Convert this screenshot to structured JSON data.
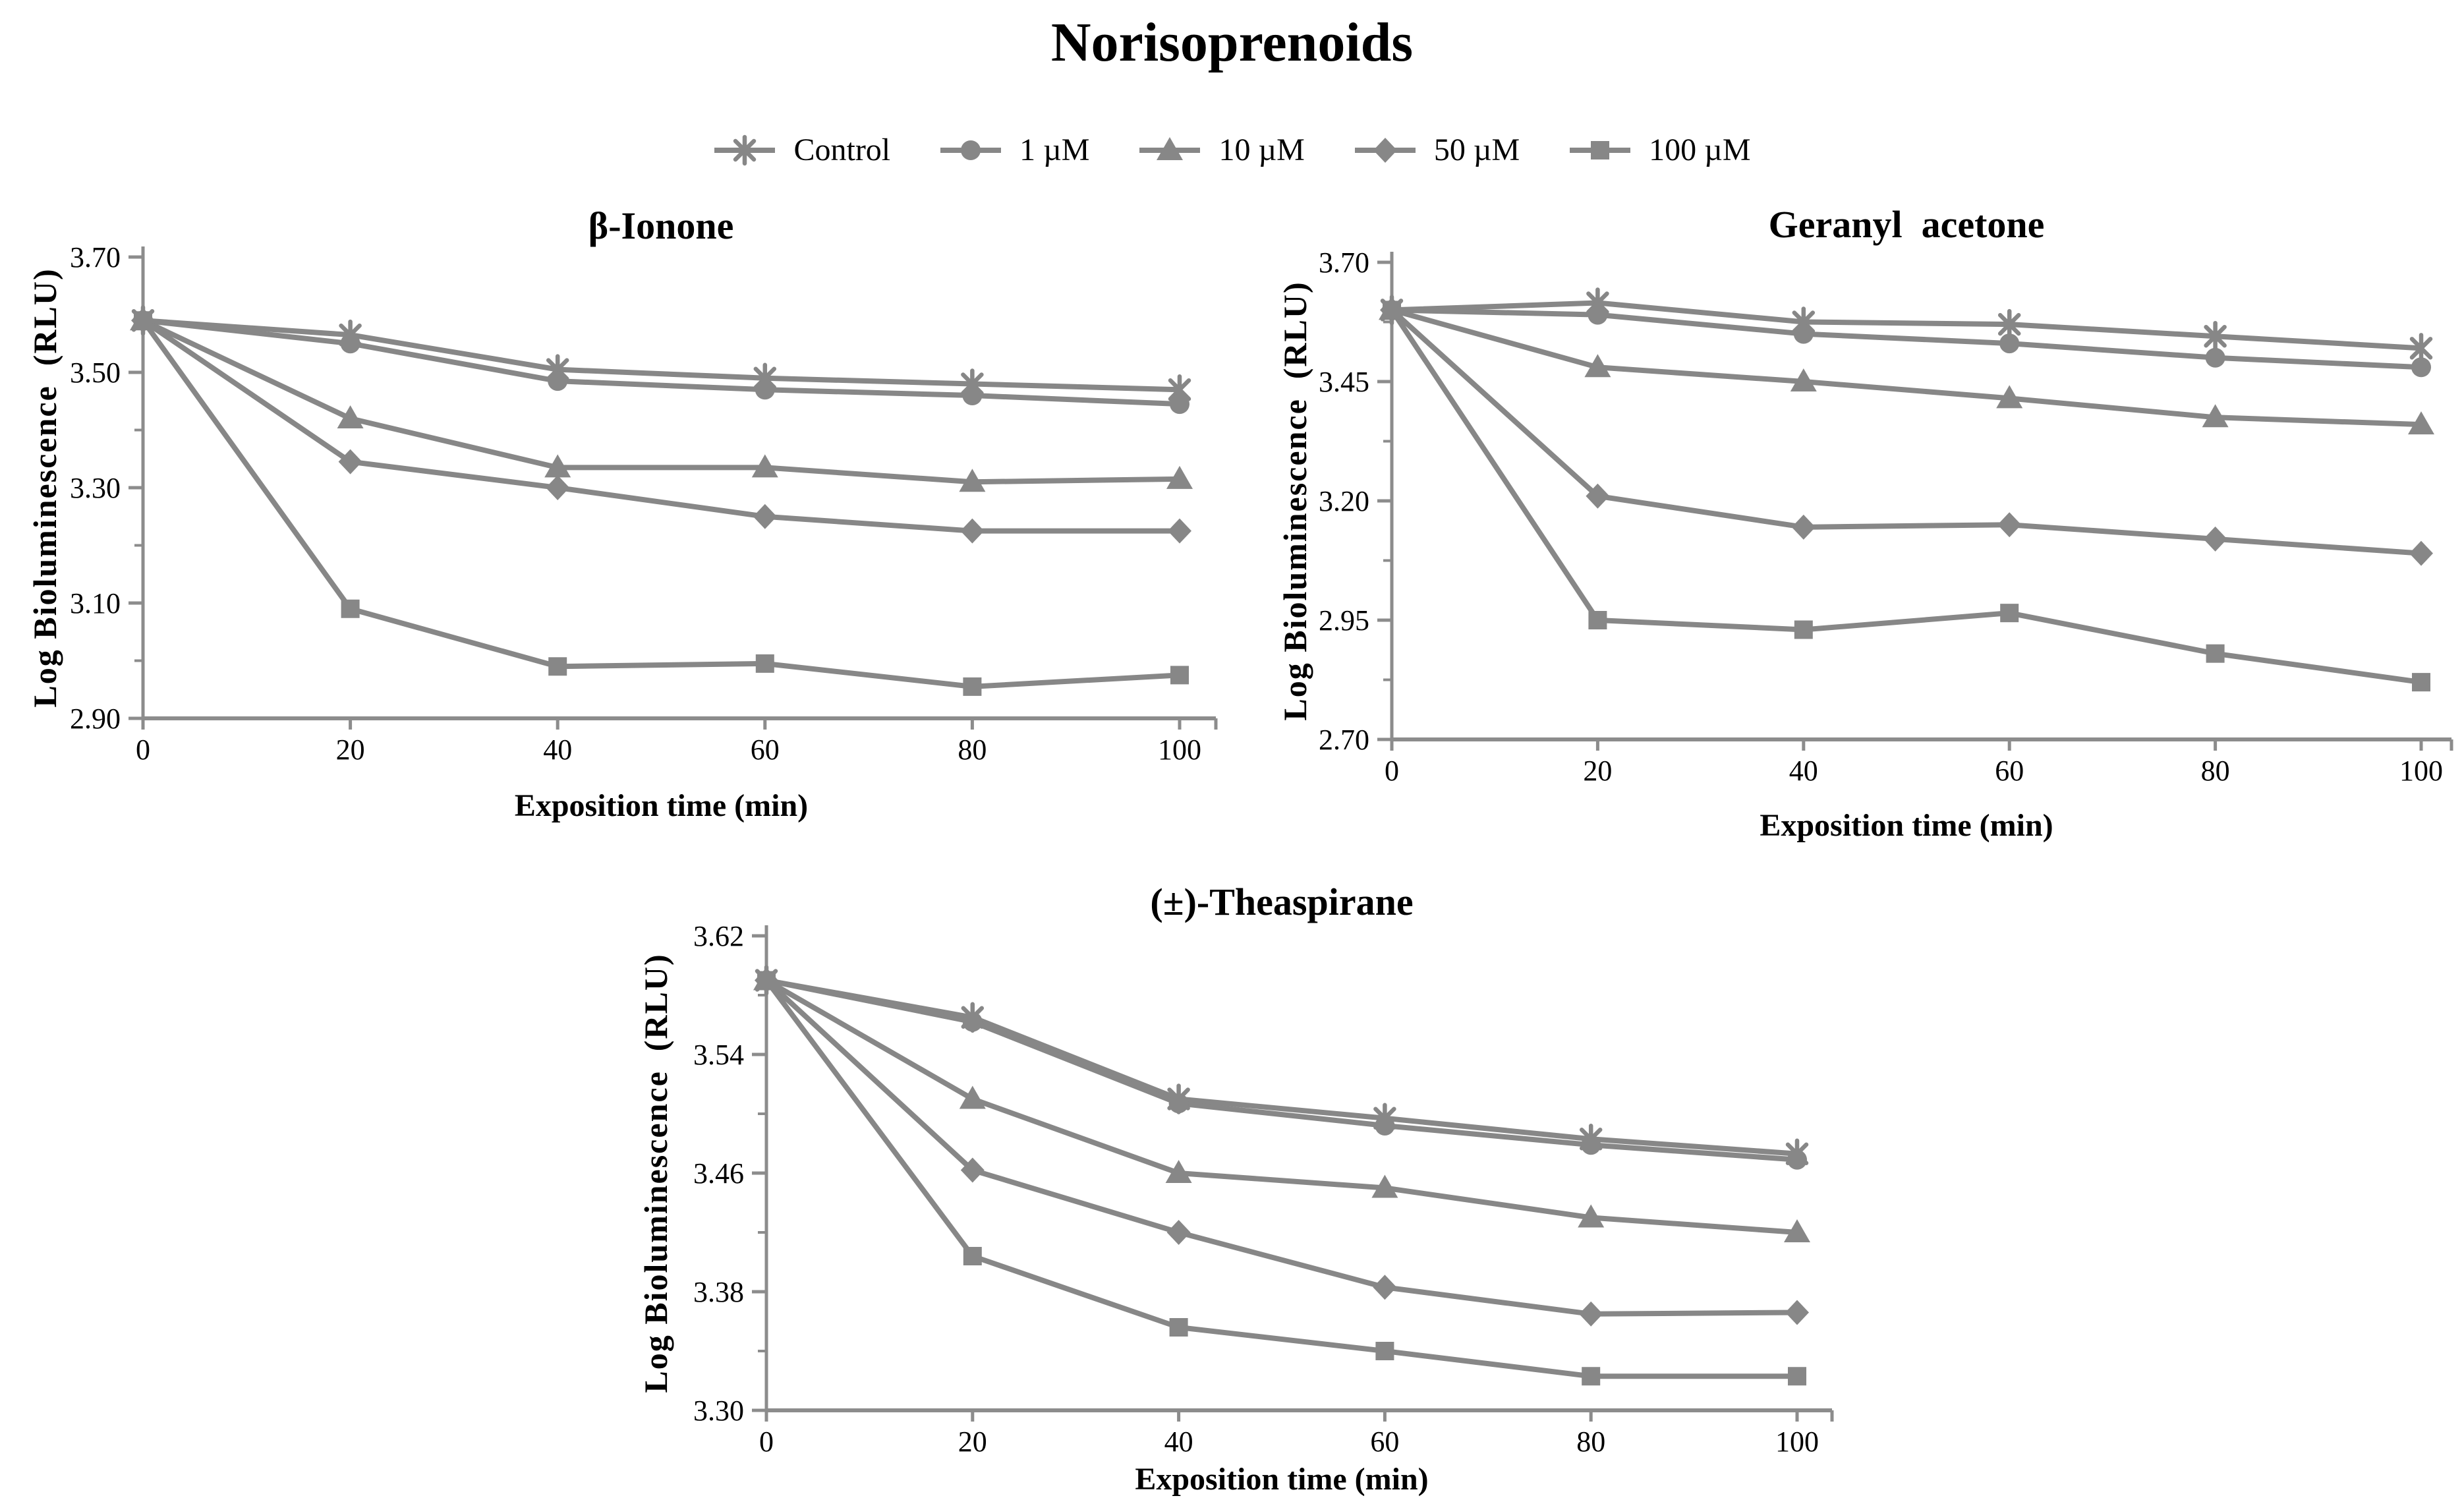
{
  "title": "Norisoprenoids",
  "colors": {
    "series_gray": "#878787",
    "axis_gray": "#8c8c8c",
    "text_black": "#000000"
  },
  "legend": {
    "items": [
      {
        "label": "Control",
        "marker": "asterisk"
      },
      {
        "label": "1 µM",
        "marker": "circle"
      },
      {
        "label": "10 µM",
        "marker": "triangle"
      },
      {
        "label": "50 µM",
        "marker": "diamond"
      },
      {
        "label": "100 µM",
        "marker": "square"
      }
    ]
  },
  "chart_data": [
    {
      "type": "line",
      "title": "β-Ionone",
      "xlabel": "Exposition time (min)",
      "ylabel": "Log Bioluminescence  (RLU)",
      "x": [
        0,
        20,
        40,
        60,
        80,
        100
      ],
      "xlim": [
        0,
        100
      ],
      "ylim": [
        2.9,
        3.7
      ],
      "yticks": [
        2.9,
        3.1,
        3.3,
        3.5,
        3.7
      ],
      "ytick_minor_step": 0.1,
      "grid": false,
      "legend_position": "top-shared",
      "series": [
        {
          "name": "Control",
          "marker": "asterisk",
          "values": [
            3.59,
            3.565,
            3.505,
            3.49,
            3.48,
            3.47
          ]
        },
        {
          "name": "1 µM",
          "marker": "circle",
          "values": [
            3.59,
            3.55,
            3.485,
            3.47,
            3.46,
            3.445
          ]
        },
        {
          "name": "10 µM",
          "marker": "triangle",
          "values": [
            3.59,
            3.42,
            3.335,
            3.335,
            3.31,
            3.315
          ]
        },
        {
          "name": "50 µM",
          "marker": "diamond",
          "values": [
            3.59,
            3.345,
            3.3,
            3.25,
            3.225,
            3.225
          ]
        },
        {
          "name": "100 µM",
          "marker": "square",
          "values": [
            3.59,
            3.09,
            2.99,
            2.995,
            2.955,
            2.975
          ]
        }
      ]
    },
    {
      "type": "line",
      "title": "Geranyl  acetone",
      "xlabel": "Exposition time (min)",
      "ylabel": "Log Bioluminescence  (RLU)",
      "x": [
        0,
        20,
        40,
        60,
        80,
        100
      ],
      "xlim": [
        0,
        100
      ],
      "ylim": [
        2.7,
        3.7
      ],
      "yticks": [
        2.7,
        2.95,
        3.2,
        3.45,
        3.7
      ],
      "ytick_minor_step": 0.125,
      "grid": false,
      "legend_position": "top-shared",
      "series": [
        {
          "name": "Control",
          "marker": "asterisk",
          "values": [
            3.6,
            3.615,
            3.575,
            3.57,
            3.545,
            3.52
          ]
        },
        {
          "name": "1 µM",
          "marker": "circle",
          "values": [
            3.6,
            3.59,
            3.55,
            3.53,
            3.5,
            3.48
          ]
        },
        {
          "name": "10 µM",
          "marker": "triangle",
          "values": [
            3.6,
            3.48,
            3.45,
            3.415,
            3.375,
            3.36
          ]
        },
        {
          "name": "50 µM",
          "marker": "diamond",
          "values": [
            3.6,
            3.21,
            3.145,
            3.15,
            3.12,
            3.09
          ]
        },
        {
          "name": "100 µM",
          "marker": "square",
          "values": [
            3.6,
            2.95,
            2.93,
            2.965,
            2.88,
            2.82
          ]
        }
      ]
    },
    {
      "type": "line",
      "title": "(±)-Theaspirane",
      "xlabel": "Exposition time (min)",
      "ylabel": "Log Bioluminescence  (RLU)",
      "x": [
        0,
        20,
        40,
        60,
        80,
        100
      ],
      "xlim": [
        0,
        100
      ],
      "ylim": [
        3.3,
        3.62
      ],
      "yticks": [
        3.3,
        3.38,
        3.46,
        3.54,
        3.62
      ],
      "ytick_minor_step": 0.04,
      "grid": false,
      "legend_position": "top-shared",
      "series": [
        {
          "name": "Control",
          "marker": "asterisk",
          "values": [
            3.59,
            3.565,
            3.51,
            3.497,
            3.483,
            3.473
          ]
        },
        {
          "name": "1 µM",
          "marker": "circle",
          "values": [
            3.59,
            3.562,
            3.507,
            3.492,
            3.479,
            3.469
          ]
        },
        {
          "name": "10 µM",
          "marker": "triangle",
          "values": [
            3.59,
            3.51,
            3.46,
            3.45,
            3.43,
            3.42
          ]
        },
        {
          "name": "50 µM",
          "marker": "diamond",
          "values": [
            3.59,
            3.462,
            3.42,
            3.383,
            3.365,
            3.366
          ]
        },
        {
          "name": "100 µM",
          "marker": "square",
          "values": [
            3.59,
            3.404,
            3.356,
            3.34,
            3.323,
            3.323
          ]
        }
      ]
    }
  ]
}
